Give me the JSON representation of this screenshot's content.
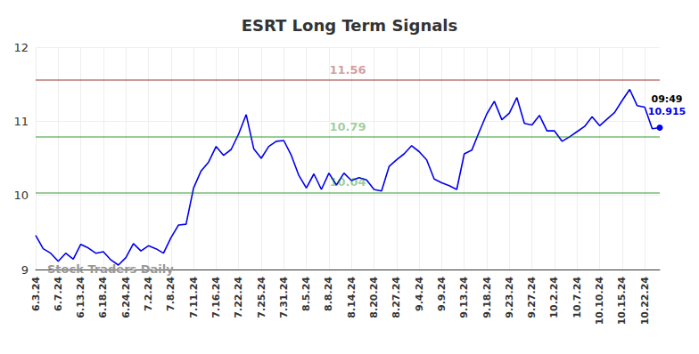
{
  "chart_data": {
    "type": "line",
    "title": "ESRT Long Term Signals",
    "color": "#0000ee",
    "categories": [
      "6.3.24",
      null,
      null,
      "6.7.24",
      null,
      null,
      "6.13.24",
      null,
      null,
      "6.18.24",
      null,
      null,
      "6.24.24",
      null,
      null,
      "7.2.24",
      null,
      null,
      "7.8.24",
      null,
      null,
      "7.11.24",
      null,
      null,
      "7.16.24",
      null,
      null,
      "7.22.24",
      null,
      null,
      "7.25.24",
      null,
      null,
      "7.31.24",
      null,
      null,
      "8.5.24",
      null,
      null,
      "8.8.24",
      null,
      null,
      "8.14.24",
      null,
      null,
      "8.20.24",
      null,
      null,
      "8.27.24",
      null,
      null,
      "9.4.24",
      null,
      null,
      "9.9.24",
      null,
      null,
      "9.13.24",
      null,
      null,
      "9.18.24",
      null,
      null,
      "9.23.24",
      null,
      null,
      "9.27.24",
      null,
      null,
      "10.2.24",
      null,
      null,
      "10.7.24",
      null,
      null,
      "10.10.24",
      null,
      null,
      "10.15.24",
      null,
      null,
      "10.22.24",
      null,
      null
    ],
    "values": [
      9.46,
      9.28,
      9.22,
      9.11,
      9.22,
      9.14,
      9.34,
      9.29,
      9.22,
      9.24,
      9.13,
      9.06,
      9.16,
      9.35,
      9.25,
      9.32,
      9.28,
      9.22,
      9.43,
      9.6,
      9.61,
      10.1,
      10.33,
      10.45,
      10.66,
      10.54,
      10.62,
      10.83,
      11.09,
      10.63,
      10.5,
      10.66,
      10.73,
      10.74,
      10.54,
      10.27,
      10.1,
      10.29,
      10.08,
      10.3,
      10.14,
      10.3,
      10.2,
      10.24,
      10.21,
      10.08,
      10.06,
      10.39,
      10.48,
      10.56,
      10.67,
      10.59,
      10.48,
      10.22,
      10.17,
      10.13,
      10.08,
      10.56,
      10.61,
      10.86,
      11.1,
      11.27,
      11.02,
      11.11,
      11.32,
      10.97,
      10.95,
      11.08,
      10.87,
      10.87,
      10.73,
      10.79,
      10.86,
      10.93,
      11.06,
      10.94,
      11.03,
      11.12,
      11.28,
      11.43,
      11.21,
      11.19,
      10.9,
      10.915
    ],
    "signals": [
      {
        "value": 11.56,
        "color": "#8b0000"
      },
      {
        "value": 10.79,
        "color": "#008000"
      },
      {
        "value": 10.04,
        "color": "#008000"
      }
    ],
    "last_time": "09:49",
    "watermark": "Stock Traders Daily",
    "ylim": [
      9,
      12
    ],
    "yticks": [
      9,
      10,
      11,
      12
    ],
    "grid": true
  }
}
